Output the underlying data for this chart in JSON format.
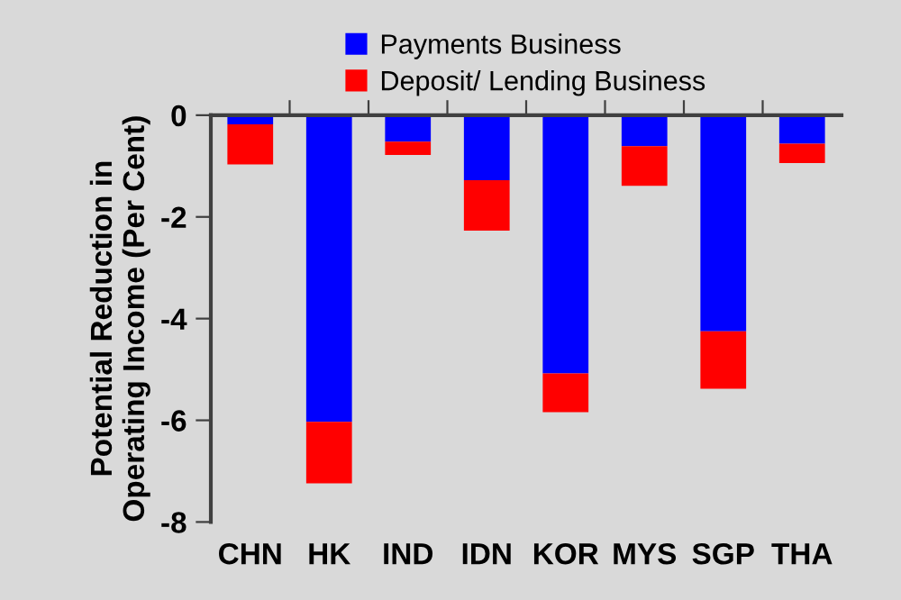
{
  "chart_data": {
    "type": "bar",
    "stacked": true,
    "ylabel": "Potential Reduction in\nOperating Income (Per Cent)",
    "categories": [
      "CHN",
      "HK",
      "IND",
      "IDN",
      "KOR",
      "MYS",
      "SGP",
      "THA"
    ],
    "series": [
      {
        "name": "Payments Business",
        "color": "#0000ff",
        "values": [
          -0.18,
          -6.03,
          -0.52,
          -1.28,
          -5.08,
          -0.61,
          -4.25,
          -0.56
        ]
      },
      {
        "name": "Deposit/ Lending Business",
        "color": "#ff0000",
        "values": [
          -0.79,
          -1.21,
          -0.26,
          -0.99,
          -0.76,
          -0.78,
          -1.13,
          -0.38
        ]
      }
    ],
    "ylim": [
      -8,
      0
    ],
    "yticks": [
      {
        "value": -8,
        "label": "-8"
      },
      {
        "value": -6,
        "label": "-6"
      },
      {
        "value": -4,
        "label": "-4"
      },
      {
        "value": -2,
        "label": "-2"
      },
      0
    ],
    "grid": false,
    "legend": "top"
  }
}
